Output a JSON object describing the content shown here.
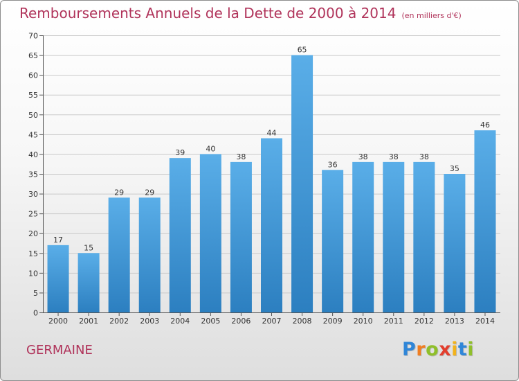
{
  "title": "Remboursements Annuels de la Dette de 2000 à 2014",
  "unit_note": "(en milliers d'€)",
  "city": "GERMAINE",
  "brand": {
    "text": "Proxiti",
    "letters": [
      {
        "ch": "P",
        "color": "#2f86d8"
      },
      {
        "ch": "r",
        "color": "#f07e22"
      },
      {
        "ch": "o",
        "color": "#8fbf2a"
      },
      {
        "ch": "x",
        "color": "#e23d2c"
      },
      {
        "ch": "i",
        "color": "#f2b21b"
      },
      {
        "ch": "t",
        "color": "#2f86d8"
      },
      {
        "ch": "i",
        "color": "#8fbf2a"
      }
    ]
  },
  "colors": {
    "accent": "#b0335a",
    "bar_light": "#5aaee8",
    "bar_dark": "#2c7fc0"
  },
  "chart_data": {
    "type": "bar",
    "title": "Remboursements Annuels de la Dette de 2000 à 2014",
    "subtitle": "(en milliers d'€)",
    "categories": [
      "2000",
      "2001",
      "2002",
      "2003",
      "2004",
      "2005",
      "2006",
      "2007",
      "2008",
      "2009",
      "2010",
      "2011",
      "2012",
      "2013",
      "2014"
    ],
    "values": [
      17,
      15,
      29,
      29,
      39,
      40,
      38,
      44,
      65,
      36,
      38,
      38,
      38,
      35,
      46
    ],
    "ylim": [
      0,
      70
    ],
    "yticks": [
      0,
      5,
      10,
      15,
      20,
      25,
      30,
      35,
      40,
      45,
      50,
      55,
      60,
      65,
      70
    ],
    "grid": true,
    "data_labels": true
  }
}
